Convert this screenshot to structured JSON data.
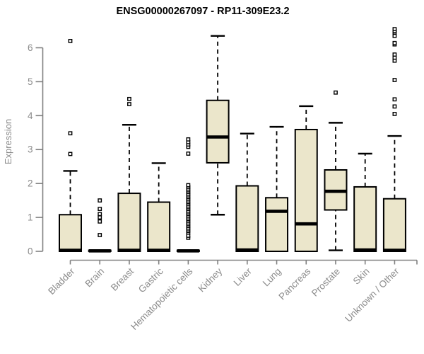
{
  "title": "ENSG00000267097 - RP11-309E23.2",
  "colors": {
    "box_fill": "#ebe6cb",
    "box_stroke": "#000000",
    "median": "#000000",
    "whisker": "#000000",
    "outlier_stroke": "#000000",
    "outlier_fill": "#ffffff",
    "axis_line": "#808080",
    "tick_label": "#8b8b8b",
    "title_color": "#000000",
    "background": "#ffffff"
  },
  "chart_data": {
    "type": "boxplot",
    "title": "ENSG00000267097 - RP11-309E23.2",
    "xlabel": "",
    "ylabel": "Expression",
    "ylim": [
      0,
      6.6
    ],
    "yticks": [
      0,
      1,
      2,
      3,
      4,
      5,
      6
    ],
    "grid": false,
    "legend": "none",
    "categories": [
      "Bladder",
      "Brain",
      "Breast",
      "Gastric",
      "Hematopoietic cells",
      "Kidney",
      "Liver",
      "Lung",
      "Pancreas",
      "Prostate",
      "Skin",
      "Unknown / Other"
    ],
    "boxes": [
      {
        "category": "Bladder",
        "whisker_low": 0,
        "q1": 0,
        "median": 0.03,
        "q3": 1.08,
        "whisker_high": 2.37,
        "outliers": [
          2.87,
          3.48,
          6.2
        ]
      },
      {
        "category": "Brain",
        "whisker_low": 0,
        "q1": 0,
        "median": 0.015,
        "q3": 0.03,
        "whisker_high": 0.03,
        "outliers": [
          0.48,
          0.88,
          1.0,
          1.1,
          1.25,
          1.5
        ]
      },
      {
        "category": "Breast",
        "whisker_low": 0,
        "q1": 0,
        "median": 0.03,
        "q3": 1.71,
        "whisker_high": 3.73,
        "outliers": [
          4.34,
          4.49
        ]
      },
      {
        "category": "Gastric",
        "whisker_low": 0,
        "q1": 0,
        "median": 0.03,
        "q3": 1.45,
        "whisker_high": 2.6,
        "outliers": []
      },
      {
        "category": "Hematopoietic cells",
        "whisker_low": 0,
        "q1": 0,
        "median": 0.015,
        "q3": 0.03,
        "whisker_high": 0.03,
        "outliers": [
          0.4,
          0.46,
          0.55,
          0.6,
          0.65,
          0.7,
          0.75,
          0.8,
          0.85,
          0.9,
          0.95,
          1.0,
          1.05,
          1.1,
          1.15,
          1.2,
          1.25,
          1.3,
          1.35,
          1.4,
          1.45,
          1.5,
          1.55,
          1.6,
          1.65,
          1.7,
          1.75,
          1.8,
          1.85,
          1.9,
          1.95,
          2.88,
          3.08,
          3.15,
          3.22,
          3.3
        ]
      },
      {
        "category": "Kidney",
        "whisker_low": 1.08,
        "q1": 2.61,
        "median": 3.37,
        "q3": 4.45,
        "whisker_high": 6.35,
        "outliers": []
      },
      {
        "category": "Liver",
        "whisker_low": 0,
        "q1": 0,
        "median": 0.04,
        "q3": 1.93,
        "whisker_high": 3.47,
        "outliers": []
      },
      {
        "category": "Lung",
        "whisker_low": 0,
        "q1": 0,
        "median": 1.18,
        "q3": 1.58,
        "whisker_high": 3.67,
        "outliers": []
      },
      {
        "category": "Pancreas",
        "whisker_low": 0,
        "q1": 0,
        "median": 0.81,
        "q3": 3.59,
        "whisker_high": 4.28,
        "outliers": []
      },
      {
        "category": "Prostate",
        "whisker_low": 0.03,
        "q1": 1.22,
        "median": 1.77,
        "q3": 2.4,
        "whisker_high": 3.79,
        "outliers": [
          4.68
        ]
      },
      {
        "category": "Skin",
        "whisker_low": 0,
        "q1": 0,
        "median": 0.04,
        "q3": 1.9,
        "whisker_high": 2.88,
        "outliers": []
      },
      {
        "category": "Unknown / Other",
        "whisker_low": 0,
        "q1": 0,
        "median": 0.03,
        "q3": 1.55,
        "whisker_high": 3.4,
        "outliers": [
          4.05,
          4.27,
          4.48,
          5.05,
          5.62,
          5.71,
          5.8,
          6.1,
          6.14,
          6.35,
          6.45,
          6.5,
          6.55
        ]
      }
    ]
  }
}
